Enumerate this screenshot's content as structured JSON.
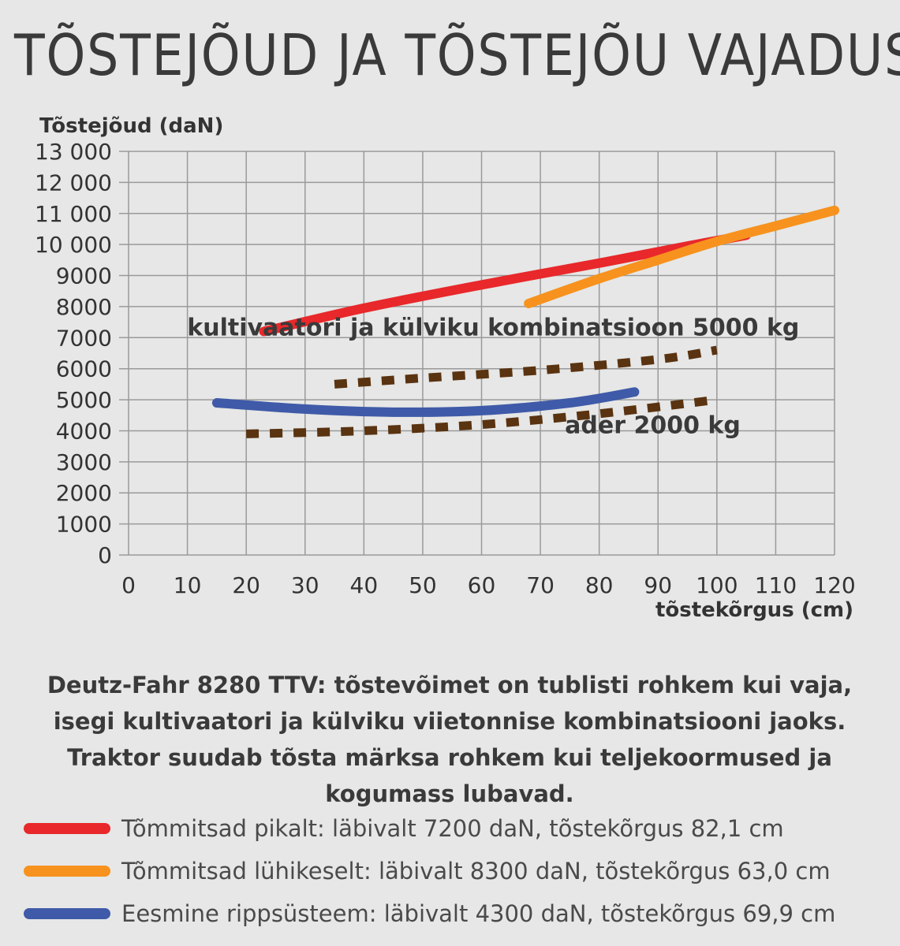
{
  "title": "TÕSTEJÕUD JA TÕSTEJÕU VAJADUS",
  "caption": "Deutz-Fahr 8280 TTV: tõstevõimet on tublisti rohkem kui vaja, isegi kultivaatori ja külviku viietonnise kombinatsiooni jaoks. Traktor suudab tõsta märksa rohkem kui teljekoormused ja kogumass lubavad.",
  "legend": [
    {
      "label": "Tõmmitsad pikalt: läbivalt 7200 daN, tõstekõrgus 82,1 cm",
      "color": "#e8282b"
    },
    {
      "label": "Tõmmitsad lühikeselt: läbivalt 8300 daN, tõstekõrgus 63,0 cm",
      "color": "#f7921e"
    },
    {
      "label": "Eesmine rippsüsteem: läbivalt 4300 daN, tõstekõrgus 69,9 cm",
      "color": "#3f5aa8"
    }
  ],
  "chart_data": {
    "type": "line",
    "ylabel": "Tõstejõud (daN)",
    "xlabel": "tõstekõrgus (cm)",
    "xlim": [
      0,
      120
    ],
    "ylim": [
      0,
      13000
    ],
    "x_ticks": [
      0,
      10,
      20,
      30,
      40,
      50,
      60,
      70,
      80,
      90,
      100,
      110,
      120
    ],
    "x_tick_labels": [
      "0",
      "10",
      "20",
      "30",
      "40",
      "50",
      "60",
      "70",
      "80",
      "90",
      "100",
      "110",
      "120"
    ],
    "y_ticks": [
      0,
      1000,
      2000,
      3000,
      4000,
      5000,
      6000,
      7000,
      8000,
      9000,
      10000,
      11000,
      12000,
      13000
    ],
    "y_tick_labels": [
      "0",
      "1000",
      "2000",
      "3000",
      "4000",
      "5000",
      "6000",
      "7000",
      "8000",
      "9000",
      "10 000",
      "11 000",
      "12 000",
      "13 000"
    ],
    "grid": true,
    "series": [
      {
        "name": "Tõmmitsad pikalt: läbivalt 7200 daN, tõstekõrgus 82,1 cm",
        "color": "#e8282b",
        "style": "solid",
        "x": [
          23,
          40,
          60,
          80,
          95,
          105
        ],
        "y": [
          7200,
          7950,
          8700,
          9400,
          9950,
          10300
        ]
      },
      {
        "name": "Tõmmitsad lühikeselt: läbivalt 8300 daN, tõstekõrgus 63,0 cm",
        "color": "#f7921e",
        "style": "solid",
        "x": [
          68,
          80,
          90,
          100,
          110,
          120
        ],
        "y": [
          8100,
          8900,
          9500,
          10100,
          10600,
          11100
        ]
      },
      {
        "name": "Eesmine rippsüsteem: läbivalt 4300 daN, tõstekõrgus 69,9 cm",
        "color": "#3f5aa8",
        "style": "solid",
        "x": [
          15,
          30,
          45,
          60,
          75,
          86
        ],
        "y": [
          4900,
          4700,
          4600,
          4650,
          4900,
          5250
        ]
      },
      {
        "name": "kultivaatori ja külviku kombinatsioon 5000 kg",
        "color": "#5a3311",
        "style": "dashed",
        "x": [
          35,
          50,
          70,
          90,
          100
        ],
        "y": [
          5500,
          5700,
          5950,
          6300,
          6600
        ]
      },
      {
        "name": "ader 2000 kg",
        "color": "#5a3311",
        "style": "dashed",
        "x": [
          20,
          40,
          60,
          80,
          100
        ],
        "y": [
          3900,
          4000,
          4200,
          4550,
          5000
        ]
      }
    ],
    "annotations": [
      {
        "text": "kultivaatori ja külviku kombinatsioon 5000 kg",
        "x": 110,
        "y": 7330
      },
      {
        "text": "ader 2000 kg",
        "x": 100,
        "y": 4180
      }
    ]
  }
}
